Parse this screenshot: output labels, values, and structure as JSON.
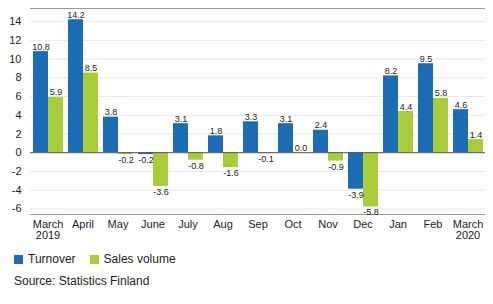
{
  "chart_data": {
    "type": "bar",
    "categories": [
      "March\n2019",
      "April",
      "May",
      "June",
      "July",
      "Aug",
      "Sep",
      "Oct",
      "Nov",
      "Dec",
      "Jan",
      "Feb",
      "March\n2020"
    ],
    "series": [
      {
        "name": "Turnover",
        "color": "#1c6db5",
        "values": [
          10.8,
          14.2,
          3.8,
          -0.2,
          3.1,
          1.8,
          3.3,
          3.1,
          2.4,
          -3.9,
          8.2,
          9.5,
          4.6
        ],
        "value_labels": [
          "10.8",
          "14.2",
          "3.8",
          "-0.2",
          "3.1",
          "1.8",
          "3.3",
          "3.1",
          "2.4",
          "-3.9",
          "8.2",
          "9.5",
          "4.6"
        ]
      },
      {
        "name": "Sales volume",
        "color": "#a9cc3a",
        "values": [
          5.9,
          8.5,
          -0.2,
          -3.6,
          -0.8,
          -1.6,
          -0.1,
          0.0,
          -0.9,
          -5.8,
          4.4,
          5.8,
          1.4
        ],
        "value_labels": [
          "5.9",
          "8.5",
          "-0.2",
          "-3.6",
          "-0.8",
          "-1.6",
          "-0.1",
          "0.0",
          "-0.9",
          "-5.8",
          "4.4",
          "5.8",
          "1.4"
        ]
      }
    ],
    "ylim": [
      -6.6,
      15.4
    ],
    "yticks": [
      -6,
      -4,
      -2,
      0,
      2,
      4,
      6,
      8,
      10,
      12,
      14
    ],
    "grid": true,
    "data_labels": true,
    "legend": "bottom-left",
    "caption": "Source: Statistics Finland"
  }
}
